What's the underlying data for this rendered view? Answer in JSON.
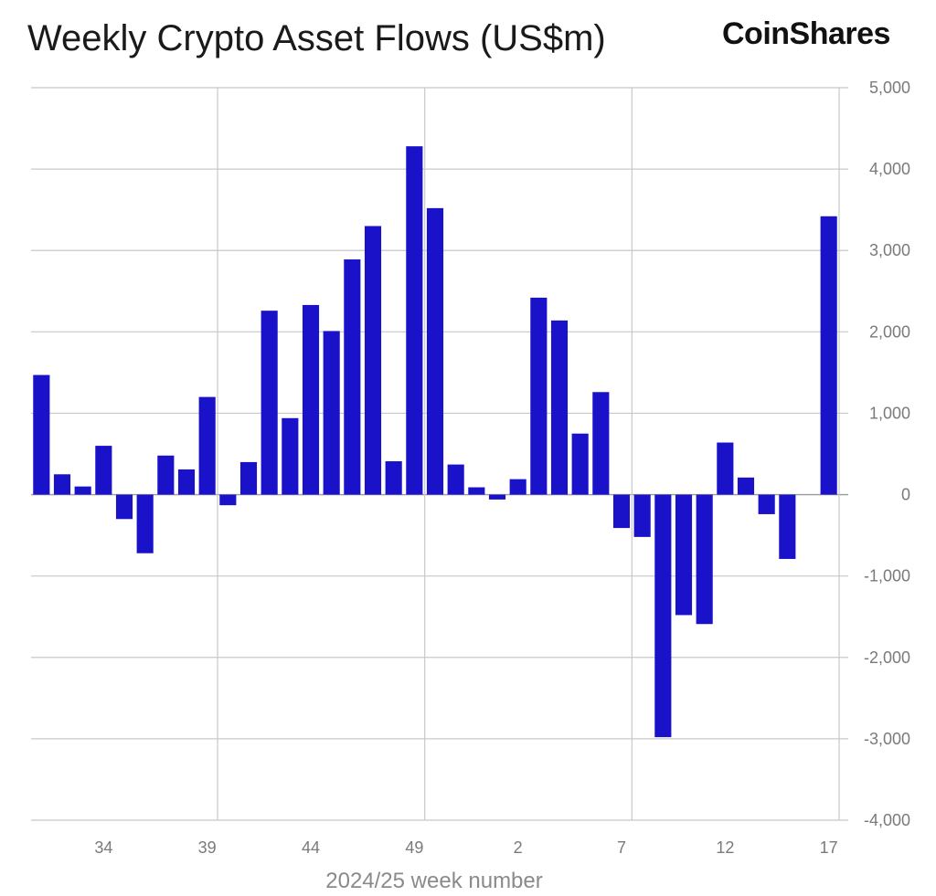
{
  "header": {
    "title": "Weekly Crypto Asset Flows (US$m)",
    "brand": "CoinShares"
  },
  "colors": {
    "bar": "#1a12c8",
    "grid": "#c8c8c8",
    "zero_line": "#9a9a9a",
    "tick_text": "#7a7a7a"
  },
  "chart_data": {
    "type": "bar",
    "title": "Weekly Crypto Asset Flows (US$m)",
    "xlabel": "2024/25 week number",
    "ylabel": "",
    "ylim": [
      -4000,
      5000
    ],
    "y_axis_position": "right",
    "grid": true,
    "legend": "none",
    "x_tick_labels": [
      "34",
      "39",
      "44",
      "49",
      "2",
      "7",
      "12",
      "17"
    ],
    "y_tick_labels": [
      "5,000",
      "4,000",
      "3,000",
      "2,000",
      "1,000",
      "0",
      "-1,000",
      "-2,000",
      "-3,000",
      "-4,000"
    ],
    "categories": [
      "31",
      "32",
      "33",
      "34",
      "35",
      "36",
      "37",
      "38",
      "39",
      "40",
      "41",
      "42",
      "43",
      "44",
      "45",
      "46",
      "47",
      "48",
      "49",
      "50",
      "51",
      "52",
      "1",
      "2",
      "3",
      "4",
      "5",
      "6",
      "7",
      "8",
      "9",
      "10",
      "11",
      "12",
      "13",
      "14",
      "15",
      "16",
      "17"
    ],
    "values": [
      1470,
      250,
      100,
      600,
      -300,
      -720,
      480,
      310,
      1200,
      -130,
      400,
      2260,
      940,
      2330,
      2010,
      2890,
      3300,
      410,
      4280,
      3520,
      370,
      90,
      -60,
      190,
      2420,
      2140,
      750,
      1260,
      -410,
      -520,
      -2980,
      -1480,
      -1590,
      640,
      210,
      -240,
      -790,
      0,
      3420
    ]
  }
}
